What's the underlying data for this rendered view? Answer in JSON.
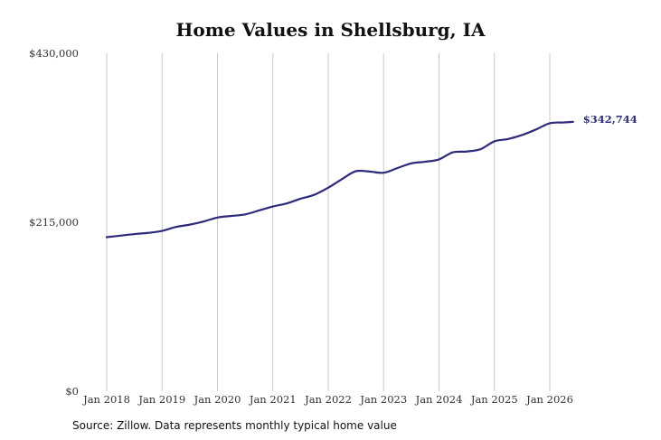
{
  "chart_data": {
    "type": "line",
    "title": "Home Values in Shellsburg, IA",
    "source_note": "Source: Zillow. Data represents monthly typical home value",
    "xlabel": "",
    "ylabel": "",
    "ylim": [
      0,
      430000
    ],
    "y_ticks": [
      0,
      215000,
      430000
    ],
    "y_tick_labels": [
      "$0",
      "$215,000",
      "$430,000"
    ],
    "x_ticks": [
      2018,
      2019,
      2020,
      2021,
      2022,
      2023,
      2024,
      2025,
      2026
    ],
    "x_tick_labels": [
      "Jan 2018",
      "Jan 2019",
      "Jan 2020",
      "Jan 2021",
      "Jan 2022",
      "Jan 2023",
      "Jan 2024",
      "Jan 2025",
      "Jan 2026"
    ],
    "grid": "vertical",
    "line_color": "#2d2a7c",
    "end_label": "$342,744",
    "series": [
      {
        "x": [
          2018.0,
          2018.25,
          2018.5,
          2018.75,
          2019.0,
          2019.25,
          2019.5,
          2019.75,
          2020.0,
          2020.25,
          2020.5,
          2020.75,
          2021.0,
          2021.25,
          2021.5,
          2021.75,
          2022.0,
          2022.25,
          2022.5,
          2022.75,
          2023.0,
          2023.25,
          2023.5,
          2023.75,
          2024.0,
          2024.25,
          2024.5,
          2024.75,
          2025.0,
          2025.25,
          2025.5,
          2025.75,
          2026.0,
          2026.25,
          2026.42
        ],
        "y": [
          196000,
          198000,
          200000,
          201500,
          204000,
          209000,
          212000,
          216000,
          221000,
          223000,
          225000,
          230000,
          235000,
          239000,
          245000,
          250000,
          259000,
          270000,
          280000,
          279500,
          278000,
          284000,
          290000,
          292000,
          295000,
          304000,
          305000,
          308000,
          318000,
          321000,
          326000,
          333000,
          341000,
          342000,
          342744
        ]
      }
    ]
  }
}
